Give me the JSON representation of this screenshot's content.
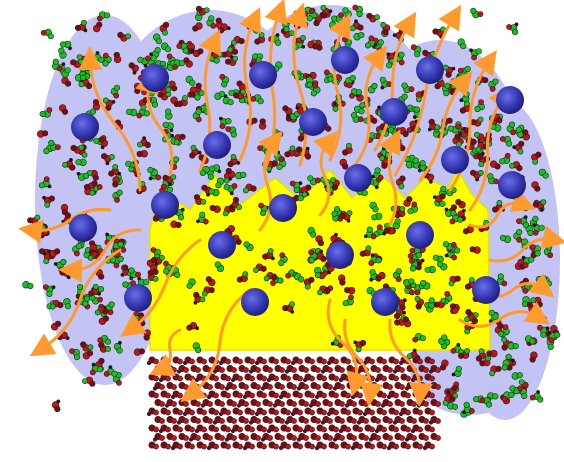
{
  "colors": {
    "background": "#ffffff",
    "cloud": "#c3c4f4",
    "flame": "#ffff00",
    "flame_edge": "#e3e300",
    "arrow": "#ff9a2e",
    "sphere_center": "#5a5ee0",
    "sphere_edge": "#1d1c7a",
    "molecule_red": "#c01418",
    "molecule_dark_red": "#7a0c10",
    "molecule_green": "#18c020",
    "molecule_dark": "#1a1a1a"
  },
  "legend": []
}
